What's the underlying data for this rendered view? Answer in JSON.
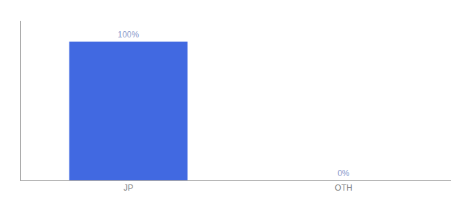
{
  "chart_data": {
    "type": "bar",
    "categories": [
      "JP",
      "OTH"
    ],
    "values": [
      100,
      0
    ],
    "value_labels": [
      "100%",
      "0%"
    ],
    "color": "#4169e1",
    "ylim": [
      0,
      115
    ],
    "yticks": [],
    "grid": false,
    "data_labels": true,
    "tick_labels": "x"
  }
}
